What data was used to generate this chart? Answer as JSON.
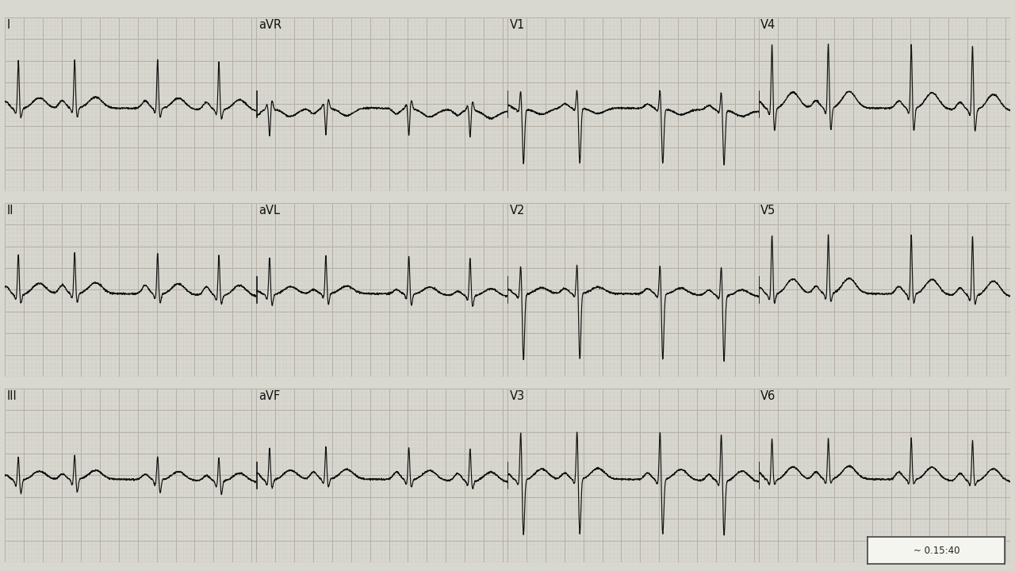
{
  "bg_color": "#d8d8d0",
  "grid_major_color": "#b8b0a8",
  "grid_minor_color": "#ccc8c0",
  "line_color": "#111111",
  "label_color": "#111111",
  "fig_width": 12.8,
  "fig_height": 7.2,
  "dpi": 100,
  "note_text": "~ 0.15:40",
  "layout": [
    [
      "I",
      "aVR",
      "V1",
      "V4"
    ],
    [
      "II",
      "aVL",
      "V2",
      "V5"
    ],
    [
      "III",
      "aVF",
      "V3",
      "V6"
    ]
  ]
}
